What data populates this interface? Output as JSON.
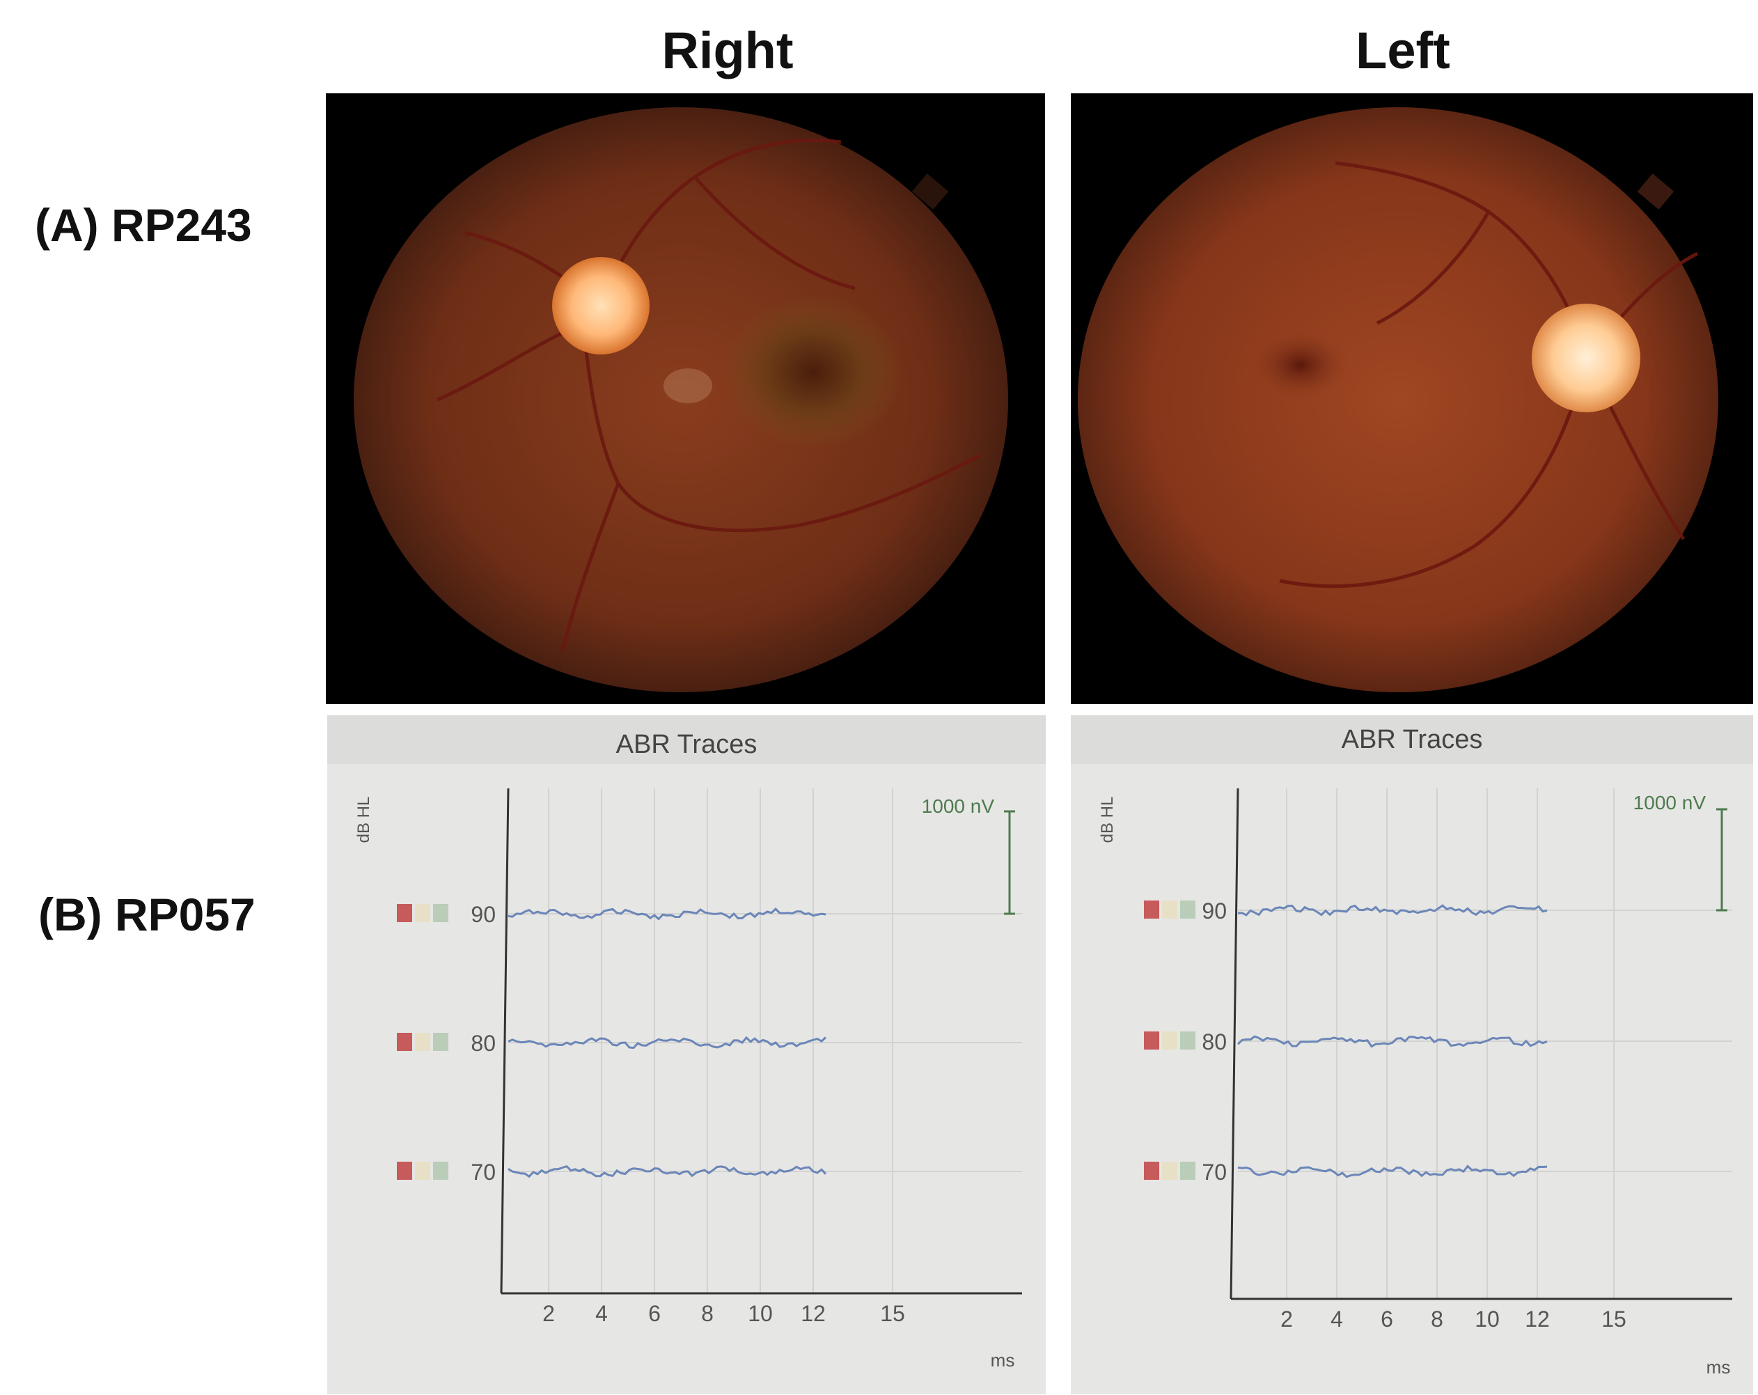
{
  "columns": {
    "right": "Right",
    "left": "Left"
  },
  "rows": {
    "a": "(A) RP243",
    "b": "(B) RP057"
  },
  "panels": [
    {
      "id": "fundus-right",
      "kind": "fundus photograph",
      "eye": "right",
      "optic_disc_side": "left",
      "colors": {
        "retina": "#8a3a1c",
        "disc": "#ffc890",
        "vessel": "#6a1810"
      }
    },
    {
      "id": "fundus-left",
      "kind": "fundus photograph",
      "eye": "left",
      "optic_disc_side": "right",
      "colors": {
        "retina": "#9a3e1e",
        "disc": "#ffd6a8",
        "vessel": "#6a1810"
      }
    }
  ],
  "abr": [
    {
      "title": "ABR Traces",
      "ylabel": "dB HL",
      "xlabel": "ms",
      "xticks": [
        "2",
        "4",
        "6",
        "8",
        "10",
        "12",
        "15"
      ],
      "scale_label": "1000 nV",
      "levels": [
        "90",
        "80",
        "70"
      ],
      "trace_color": "#6b86b8",
      "marker_colors": [
        "#c75a5a",
        "#e8e0c6",
        "#b9cdb9"
      ]
    },
    {
      "title": "ABR Traces",
      "ylabel": "dB HL",
      "xlabel": "ms",
      "xticks": [
        "2",
        "4",
        "6",
        "8",
        "10",
        "12",
        "15"
      ],
      "scale_label": "1000 nV",
      "levels": [
        "90",
        "80",
        "70"
      ],
      "trace_color": "#6b86b8",
      "marker_colors": [
        "#c75a5a",
        "#e8e0c6",
        "#b9cdb9"
      ]
    }
  ]
}
